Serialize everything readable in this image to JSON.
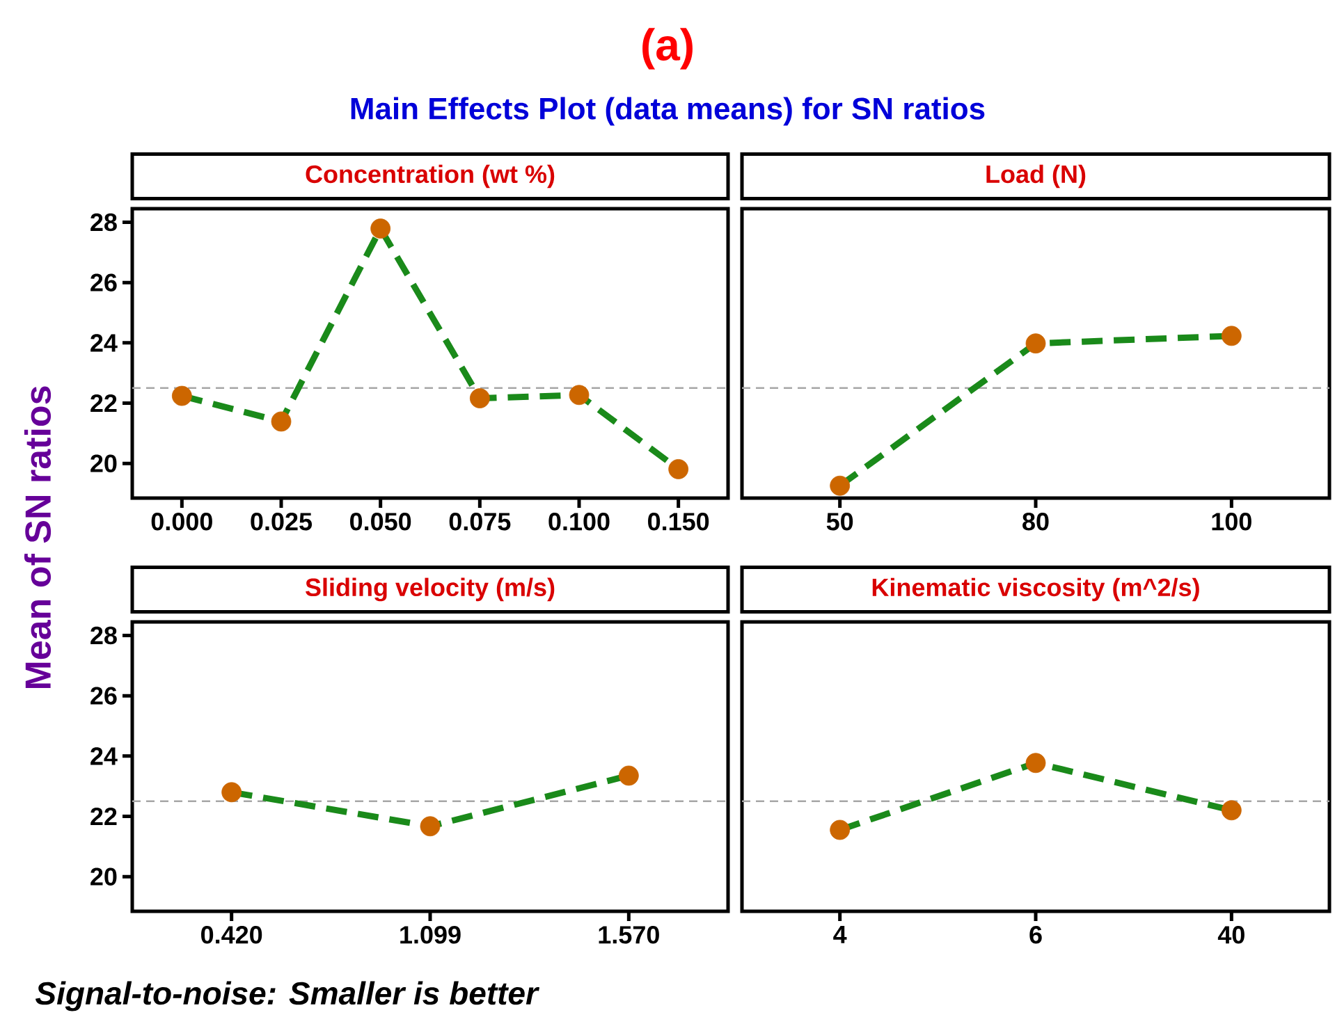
{
  "chart_data": [
    {
      "type": "line",
      "title": "Concentration (wt %)",
      "ylabel": "Mean of SN ratios",
      "annotations": [
        "(a)",
        "Main Effects Plot (data means) for SN ratios",
        "Signal-to-noise: Smaller is better"
      ],
      "categories": [
        "0.000",
        "0.025",
        "0.050",
        "0.075",
        "0.100",
        "0.150"
      ],
      "series": [
        {
          "color": "#1a8a1a",
          "colors": [
            "#cc6600",
            "#cc6600",
            "#cc6600",
            "#cc6600",
            "#cc6600",
            "#cc6600"
          ],
          "values": [
            22.24,
            21.39,
            27.79,
            22.16,
            22.27,
            19.81
          ]
        }
      ],
      "ylim": [
        18.85,
        28.45
      ],
      "yticks": [
        20,
        22,
        24,
        26,
        28
      ],
      "ref_lines": [
        {
          "axis": "y",
          "value": 22.5,
          "color": "#a6a6a6",
          "line_style": "dashed"
        }
      ],
      "marker": "circle",
      "line_style": "dashed"
    },
    {
      "type": "line",
      "title": "Load (N)",
      "categories": [
        "50",
        "80",
        "100"
      ],
      "series": [
        {
          "color": "#1a8a1a",
          "colors": [
            "#cc6600",
            "#cc6600",
            "#cc6600"
          ],
          "values": [
            19.26,
            23.98,
            24.23
          ]
        }
      ],
      "ylim": [
        18.85,
        28.45
      ],
      "yticks": [
        20,
        22,
        24,
        26,
        28
      ],
      "tick_labels": "x",
      "ref_lines": [
        {
          "axis": "y",
          "value": 22.5,
          "color": "#a6a6a6",
          "line_style": "dashed"
        }
      ],
      "marker": "circle",
      "line_style": "dashed"
    },
    {
      "type": "line",
      "title": "Sliding velocity (m/s)",
      "categories": [
        "0.420",
        "1.099",
        "1.570"
      ],
      "series": [
        {
          "color": "#1a8a1a",
          "colors": [
            "#cc6600",
            "#cc6600",
            "#cc6600"
          ],
          "values": [
            22.8,
            21.67,
            23.35
          ]
        }
      ],
      "ylim": [
        18.85,
        28.45
      ],
      "yticks": [
        20,
        22,
        24,
        26,
        28
      ],
      "ref_lines": [
        {
          "axis": "y",
          "value": 22.5,
          "color": "#a6a6a6",
          "line_style": "dashed"
        }
      ],
      "marker": "circle",
      "line_style": "dashed"
    },
    {
      "type": "line",
      "title": "Kinematic viscosity (m^2/s)",
      "categories": [
        "4",
        "6",
        "40"
      ],
      "series": [
        {
          "color": "#1a8a1a",
          "colors": [
            "#cc6600",
            "#cc6600",
            "#cc6600"
          ],
          "values": [
            21.55,
            23.77,
            22.2
          ]
        }
      ],
      "ylim": [
        18.85,
        28.45
      ],
      "yticks": [
        20,
        22,
        24,
        26,
        28
      ],
      "tick_labels": "x",
      "ref_lines": [
        {
          "axis": "y",
          "value": 22.5,
          "color": "#a6a6a6",
          "line_style": "dashed"
        }
      ],
      "marker": "circle",
      "line_style": "dashed"
    }
  ]
}
